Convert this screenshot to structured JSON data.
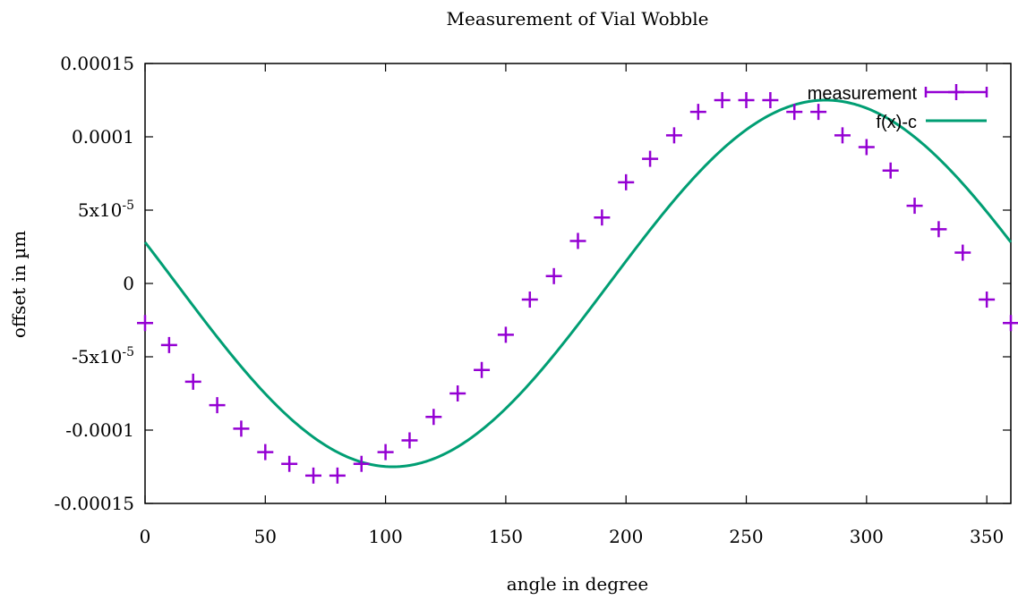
{
  "chart_data": {
    "type": "scatter",
    "title": "Measurement of Vial Wobble",
    "xlabel": "angle in degree",
    "ylabel": "offset in µm",
    "xlim": [
      0,
      360
    ],
    "ylim": [
      -0.00015,
      0.00015
    ],
    "xticks": [
      0,
      50,
      100,
      150,
      200,
      250,
      300,
      350
    ],
    "xtick_labels": [
      "0",
      "50",
      "100",
      "150",
      "200",
      "250",
      "300",
      "350"
    ],
    "yticks": [
      -0.00015,
      -0.0001,
      -5e-05,
      0,
      5e-05,
      0.0001,
      0.00015
    ],
    "ytick_labels": [
      {
        "base": "-0.00015",
        "exp": ""
      },
      {
        "base": "-0.0001",
        "exp": ""
      },
      {
        "base": "-5x10",
        "exp": "-5"
      },
      {
        "base": "0",
        "exp": ""
      },
      {
        "base": "5x10",
        "exp": "-5"
      },
      {
        "base": "0.0001",
        "exp": ""
      },
      {
        "base": "0.00015",
        "exp": ""
      }
    ],
    "grid": false,
    "legend_position": "top-right",
    "series": [
      {
        "name": "measurement",
        "style": "points",
        "marker": "plus",
        "color": "#9400d3",
        "x": [
          0,
          10,
          20,
          30,
          40,
          50,
          60,
          70,
          80,
          90,
          100,
          110,
          120,
          130,
          140,
          150,
          160,
          170,
          180,
          190,
          200,
          210,
          220,
          230,
          240,
          250,
          260,
          270,
          280,
          290,
          300,
          310,
          320,
          330,
          340,
          350,
          360
        ],
        "y": [
          -2.7e-05,
          -4.2e-05,
          -6.7e-05,
          -8.3e-05,
          -9.9e-05,
          -0.000115,
          -0.000123,
          -0.000131,
          -0.000131,
          -0.000123,
          -0.000115,
          -0.000107,
          -9.1e-05,
          -7.5e-05,
          -5.9e-05,
          -3.5e-05,
          -1.1e-05,
          5e-06,
          2.9e-05,
          4.5e-05,
          6.9e-05,
          8.5e-05,
          0.000101,
          0.000117,
          0.000125,
          0.000125,
          0.000125,
          0.000117,
          0.000117,
          0.000101,
          9.3e-05,
          7.7e-05,
          5.3e-05,
          3.7e-05,
          2.1e-05,
          -1.1e-05,
          -2.7e-05
        ]
      },
      {
        "name": "f(x)-c",
        "style": "line",
        "color": "#009e73",
        "function": {
          "amplitude": 0.000125,
          "phase_deg": 167,
          "period_deg": 360
        }
      }
    ]
  }
}
